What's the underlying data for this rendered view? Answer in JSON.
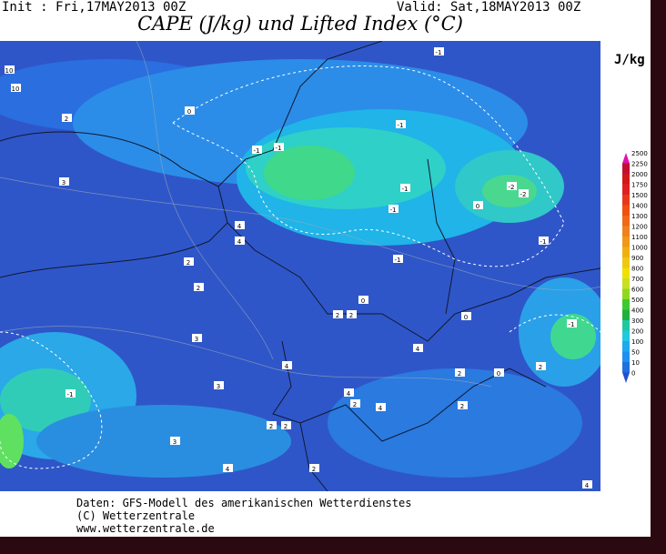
{
  "header": {
    "init": "Init : Fri,17MAY2013 00Z",
    "valid": "Valid: Sat,18MAY2013 00Z",
    "title": "CAPE (J/kg) und Lifted Index (°C)"
  },
  "legend": {
    "unit": "J/kg",
    "levels": [
      "2500",
      "2250",
      "2000",
      "1750",
      "1500",
      "1400",
      "1300",
      "1200",
      "1100",
      "1000",
      "900",
      "800",
      "700",
      "600",
      "500",
      "400",
      "300",
      "200",
      "100",
      "50",
      "10",
      "0"
    ]
  },
  "contour_labels": [
    "10",
    "10",
    "2",
    "3",
    "0",
    "-1",
    "-1",
    "-1",
    "-1",
    "-1",
    "-1",
    "-1",
    "-2",
    "-2",
    "0",
    "-1",
    "4",
    "4",
    "2",
    "2",
    "0",
    "2",
    "2",
    "0",
    "-1",
    "3",
    "4",
    "4",
    "0",
    "2",
    "2",
    "-1",
    "3",
    "4",
    "2",
    "4",
    "2",
    "2",
    "2",
    "3",
    "4",
    "2",
    "4"
  ],
  "footer": {
    "line1": "Daten: GFS-Modell des amerikanischen Wetterdienstes",
    "line2": "(C) Wetterzentrale",
    "line3": "www.wetterzentrale.de"
  }
}
